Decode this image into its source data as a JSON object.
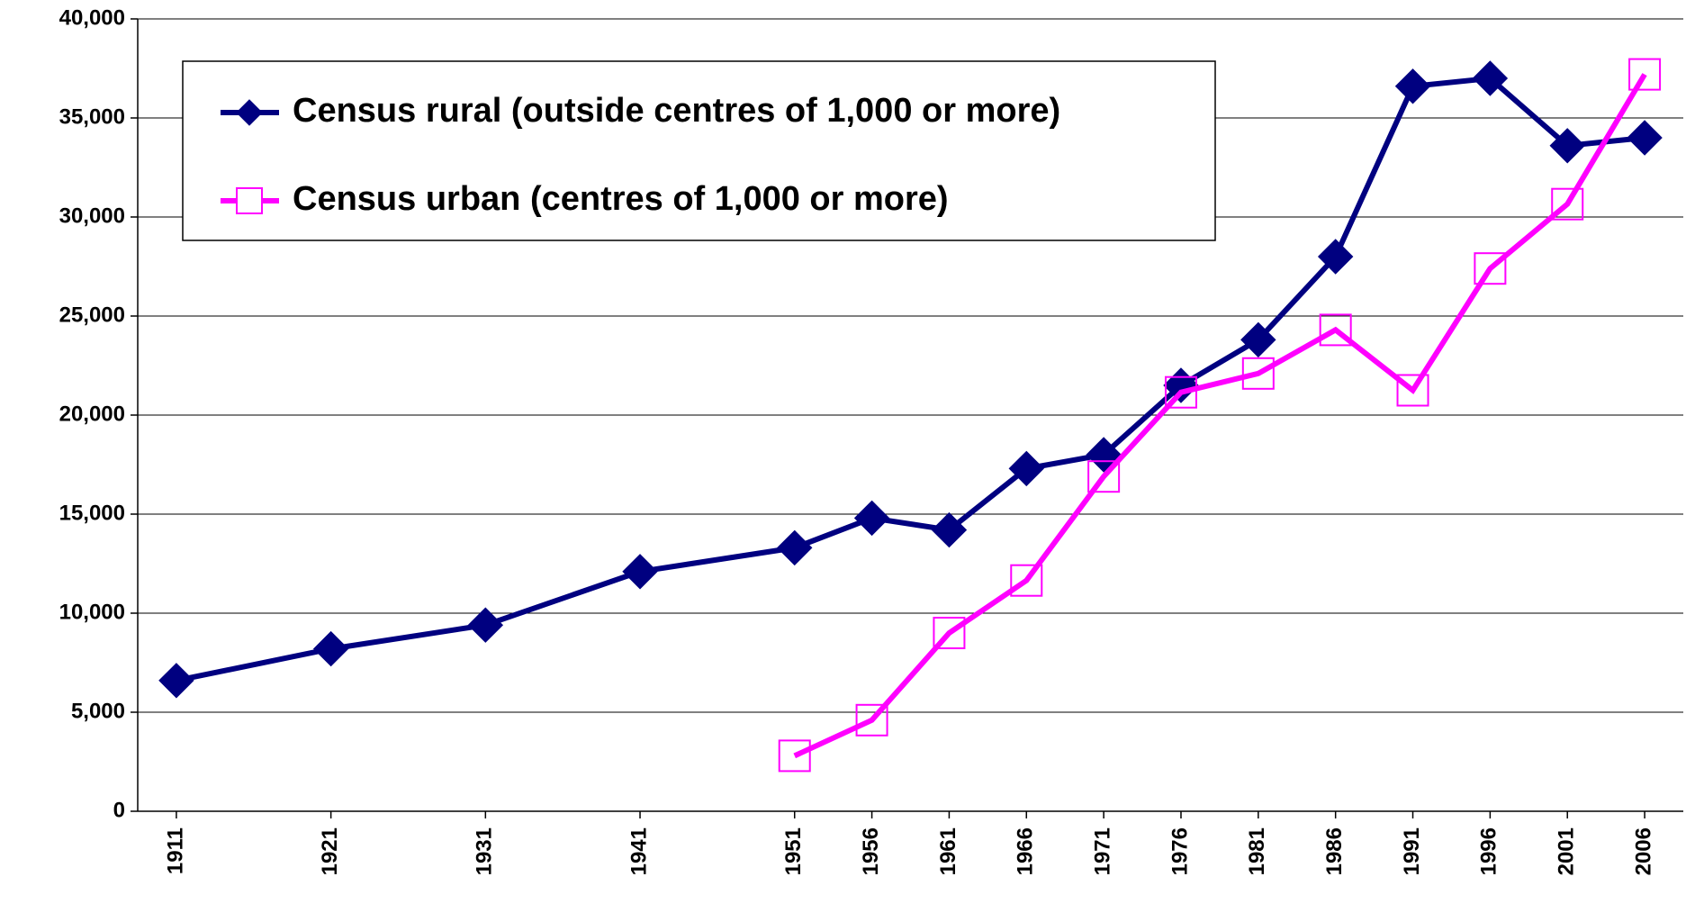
{
  "chart_data": {
    "type": "line",
    "x": [
      1911,
      1921,
      1931,
      1941,
      1951,
      1956,
      1961,
      1966,
      1971,
      1976,
      1981,
      1986,
      1991,
      1996,
      2001,
      2006
    ],
    "series": [
      {
        "name": "Census rural (outside centres of 1,000 or more)",
        "color": "#000080",
        "marker": "diamond",
        "values": [
          6600,
          8200,
          9400,
          12100,
          13300,
          14800,
          14200,
          17300,
          18000,
          21500,
          23800,
          28000,
          36600,
          37000,
          33600,
          34000
        ]
      },
      {
        "name": "Census urban (centres of 1,000 or more)",
        "color": "#ff00ff",
        "marker": "square",
        "values": [
          null,
          null,
          null,
          null,
          2800,
          4600,
          9000,
          11650,
          16900,
          21150,
          22100,
          24300,
          21250,
          27400,
          30650,
          37200
        ]
      }
    ],
    "xlim": [
      1908.5,
      2008.5
    ],
    "ylim": [
      0,
      40000
    ],
    "yticks": [
      0,
      {
        "value": 5000,
        "label": "5,000"
      },
      {
        "value": 10000,
        "label": "10,000"
      },
      {
        "value": 15000,
        "label": "15,000"
      },
      {
        "value": 20000,
        "label": "20,000"
      },
      {
        "value": 25000,
        "label": "25,000"
      },
      {
        "value": 30000,
        "label": "30,000"
      },
      {
        "value": 35000,
        "label": "35,000"
      },
      {
        "value": 40000,
        "label": "40,000"
      }
    ],
    "grid": true,
    "legend": "upper left"
  }
}
